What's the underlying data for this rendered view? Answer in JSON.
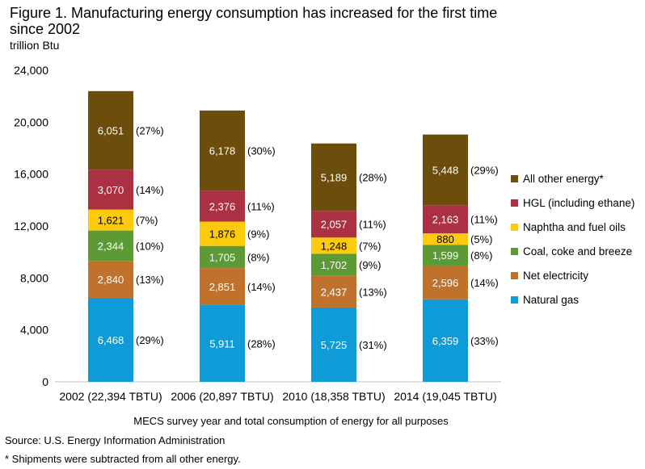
{
  "chart_data": {
    "type": "bar",
    "stacked": true,
    "title": "Figure 1. Manufacturing energy consumption has increased for the first time since 2002",
    "unit_label": "trillion Btu",
    "xlabel": "MECS survey year and total consumption of energy for all purposes",
    "ylabel": "",
    "ylim": [
      0,
      24000
    ],
    "yticks": [
      "0",
      "4,000",
      "8,000",
      "12,000",
      "16,000",
      "20,000",
      "24,000"
    ],
    "ytick_values": [
      0,
      4000,
      8000,
      12000,
      16000,
      20000,
      24000
    ],
    "grid": false,
    "legend_position": "right",
    "categories": [
      "2002 (22,394 TBTU)",
      "2006 (20,897 TBTU)",
      "2010 (18,358 TBTU)",
      "2014 (19,045 TBTU)"
    ],
    "series": [
      {
        "name": "Natural gas",
        "color": "#0f9bd7",
        "label_color": "#ffffff",
        "values": [
          6468,
          5911,
          5725,
          6359
        ],
        "labels": [
          "6,468",
          "5,911",
          "5,725",
          "6,359"
        ],
        "pct": [
          "(29%)",
          "(28%)",
          "(31%)",
          "(33%)"
        ]
      },
      {
        "name": "Net electricity",
        "color": "#c0722d",
        "label_color": "#ffffff",
        "values": [
          2840,
          2851,
          2437,
          2596
        ],
        "labels": [
          "2,840",
          "2,851",
          "2,437",
          "2,596"
        ],
        "pct": [
          "(13%)",
          "(14%)",
          "(13%)",
          "(14%)"
        ]
      },
      {
        "name": "Coal, coke and breeze",
        "color": "#5b9a35",
        "label_color": "#ffffff",
        "values": [
          2344,
          1705,
          1702,
          1599
        ],
        "labels": [
          "2,344",
          "1,705",
          "1,702",
          "1,599"
        ],
        "pct": [
          "(10%)",
          "(8%)",
          "(9%)",
          "(8%)"
        ]
      },
      {
        "name": "Naphtha and fuel oils",
        "color": "#fdcb0c",
        "label_color": "#000000",
        "values": [
          1621,
          1876,
          1248,
          880
        ],
        "labels": [
          "1,621",
          "1,876",
          "1,248",
          "880"
        ],
        "pct": [
          "(7%)",
          "(9%)",
          "(7%)",
          "(5%)"
        ]
      },
      {
        "name": "HGL (including ethane)",
        "color": "#ab3041",
        "label_color": "#ffffff",
        "values": [
          3070,
          2376,
          2057,
          2163
        ],
        "labels": [
          "3,070",
          "2,376",
          "2,057",
          "2,163"
        ],
        "pct": [
          "(14%)",
          "(11%)",
          "(11%)",
          "(11%)"
        ]
      },
      {
        "name": "All other energy*",
        "color": "#6d4d0b",
        "label_color": "#ffffff",
        "values": [
          6051,
          6178,
          5189,
          5448
        ],
        "labels": [
          "6,051",
          "6,178",
          "5,189",
          "5,448"
        ],
        "pct": [
          "(27%)",
          "(30%)",
          "(28%)",
          "(29%)"
        ]
      }
    ],
    "source": "Source: U.S. Energy Information Administration",
    "footnote": "* Shipments were subtracted from all other energy."
  }
}
